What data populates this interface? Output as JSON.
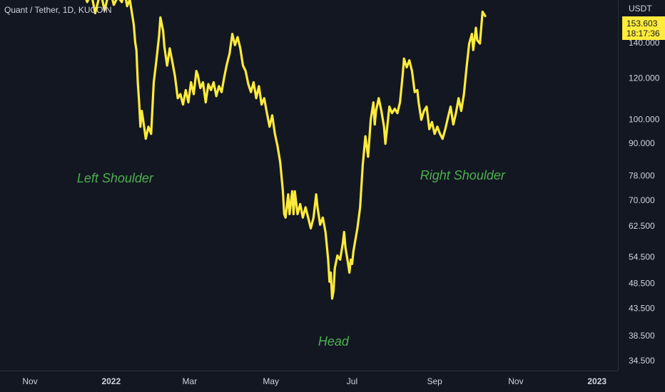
{
  "symbol_info": "Quant / Tether, 1D, KUCOIN",
  "currency": "USDT",
  "price_label": {
    "price": "153.603",
    "countdown": "18:17:36"
  },
  "colors": {
    "background": "#131722",
    "line": "#ffeb3b",
    "annotation": "#4caf50",
    "axis_text": "#d1d4dc"
  },
  "chart_data": {
    "type": "line",
    "scale": "log",
    "title": "Quant / Tether, 1D, KUCOIN",
    "y_unit": "USDT",
    "ylim": [
      32.5,
      170
    ],
    "grid": false,
    "y_ticks": [
      "140.000",
      "120.000",
      "100.000",
      "90.000",
      "78.000",
      "70.000",
      "62.500",
      "54.500",
      "48.500",
      "43.500",
      "38.500",
      "34.500"
    ],
    "x_ticks": [
      {
        "label": "Nov",
        "bold": false,
        "date": "2021-11-01"
      },
      {
        "label": "2022",
        "bold": true,
        "date": "2022-01-01"
      },
      {
        "label": "Mar",
        "bold": false,
        "date": "2022-03-01"
      },
      {
        "label": "May",
        "bold": false,
        "date": "2022-05-01"
      },
      {
        "label": "Jul",
        "bold": false,
        "date": "2022-07-01"
      },
      {
        "label": "Sep",
        "bold": false,
        "date": "2022-09-01"
      },
      {
        "label": "Nov",
        "bold": false,
        "date": "2022-11-01"
      },
      {
        "label": "2023",
        "bold": true,
        "date": "2023-01-01"
      }
    ],
    "annotations": [
      {
        "text": "Left Shoulder",
        "date": "2022-01-04",
        "value": 77
      },
      {
        "text": "Head",
        "date": "2022-06-17",
        "value": 37.5
      },
      {
        "text": "Right Shoulder",
        "date": "2022-09-22",
        "value": 78
      }
    ],
    "series": [
      {
        "values": [
          [
            "2021-12-10",
            180
          ],
          [
            "2021-12-14",
            168
          ],
          [
            "2021-12-17",
            175
          ],
          [
            "2021-12-20",
            160
          ],
          [
            "2021-12-24",
            176
          ],
          [
            "2021-12-27",
            162
          ],
          [
            "2021-12-31",
            178
          ],
          [
            "2022-01-03",
            166
          ],
          [
            "2022-01-06",
            172
          ],
          [
            "2022-01-09",
            168
          ],
          [
            "2022-01-11",
            176
          ],
          [
            "2022-01-13",
            165
          ],
          [
            "2022-01-15",
            170
          ],
          [
            "2022-01-18",
            152
          ],
          [
            "2022-01-19",
            141
          ],
          [
            "2022-01-20",
            136
          ],
          [
            "2022-01-21",
            118
          ],
          [
            "2022-01-22",
            108
          ],
          [
            "2022-01-23",
            97
          ],
          [
            "2022-01-24",
            104
          ],
          [
            "2022-01-25",
            100
          ],
          [
            "2022-01-27",
            92
          ],
          [
            "2022-01-29",
            97
          ],
          [
            "2022-01-31",
            94
          ],
          [
            "2022-02-02",
            118
          ],
          [
            "2022-02-04",
            130
          ],
          [
            "2022-02-06",
            145
          ],
          [
            "2022-02-07",
            157
          ],
          [
            "2022-02-09",
            148
          ],
          [
            "2022-02-10",
            138
          ],
          [
            "2022-02-12",
            127
          ],
          [
            "2022-02-14",
            137
          ],
          [
            "2022-02-16",
            129
          ],
          [
            "2022-02-18",
            121
          ],
          [
            "2022-02-20",
            110
          ],
          [
            "2022-02-22",
            112
          ],
          [
            "2022-02-24",
            107
          ],
          [
            "2022-02-26",
            114
          ],
          [
            "2022-02-28",
            108
          ],
          [
            "2022-03-02",
            118
          ],
          [
            "2022-03-04",
            112
          ],
          [
            "2022-03-06",
            124
          ],
          [
            "2022-03-07",
            122
          ],
          [
            "2022-03-09",
            115
          ],
          [
            "2022-03-11",
            118
          ],
          [
            "2022-03-13",
            108
          ],
          [
            "2022-03-15",
            117
          ],
          [
            "2022-03-17",
            114
          ],
          [
            "2022-03-19",
            118
          ],
          [
            "2022-03-21",
            111
          ],
          [
            "2022-03-23",
            116
          ],
          [
            "2022-03-25",
            113
          ],
          [
            "2022-03-27",
            121
          ],
          [
            "2022-03-29",
            128
          ],
          [
            "2022-03-31",
            134
          ],
          [
            "2022-04-02",
            146
          ],
          [
            "2022-04-04",
            139
          ],
          [
            "2022-04-06",
            144
          ],
          [
            "2022-04-08",
            137
          ],
          [
            "2022-04-10",
            127
          ],
          [
            "2022-04-12",
            124
          ],
          [
            "2022-04-14",
            117
          ],
          [
            "2022-04-16",
            113
          ],
          [
            "2022-04-18",
            118
          ],
          [
            "2022-04-20",
            110
          ],
          [
            "2022-04-22",
            116
          ],
          [
            "2022-04-24",
            107
          ],
          [
            "2022-04-26",
            110
          ],
          [
            "2022-04-28",
            103
          ],
          [
            "2022-04-30",
            97
          ],
          [
            "2022-05-02",
            102
          ],
          [
            "2022-05-04",
            94
          ],
          [
            "2022-05-06",
            89
          ],
          [
            "2022-05-08",
            83
          ],
          [
            "2022-05-10",
            73
          ],
          [
            "2022-05-11",
            66
          ],
          [
            "2022-05-12",
            65
          ],
          [
            "2022-05-14",
            72
          ],
          [
            "2022-05-15",
            66
          ],
          [
            "2022-05-17",
            73
          ],
          [
            "2022-05-18",
            66
          ],
          [
            "2022-05-19",
            73
          ],
          [
            "2022-05-21",
            66
          ],
          [
            "2022-05-23",
            69
          ],
          [
            "2022-05-25",
            65
          ],
          [
            "2022-05-27",
            68
          ],
          [
            "2022-05-29",
            65
          ],
          [
            "2022-05-31",
            62
          ],
          [
            "2022-06-02",
            65
          ],
          [
            "2022-06-04",
            72
          ],
          [
            "2022-06-05",
            68
          ],
          [
            "2022-06-07",
            63
          ],
          [
            "2022-06-09",
            65
          ],
          [
            "2022-06-11",
            61
          ],
          [
            "2022-06-13",
            54
          ],
          [
            "2022-06-14",
            49
          ],
          [
            "2022-06-15",
            51
          ],
          [
            "2022-06-16",
            45.5
          ],
          [
            "2022-06-17",
            47
          ],
          [
            "2022-06-18",
            52
          ],
          [
            "2022-06-20",
            55
          ],
          [
            "2022-06-22",
            54
          ],
          [
            "2022-06-24",
            58
          ],
          [
            "2022-06-25",
            61
          ],
          [
            "2022-06-26",
            57
          ],
          [
            "2022-06-27",
            55
          ],
          [
            "2022-06-28",
            53
          ],
          [
            "2022-06-29",
            51
          ],
          [
            "2022-06-30",
            54
          ],
          [
            "2022-07-01",
            53
          ],
          [
            "2022-07-02",
            56
          ],
          [
            "2022-07-03",
            58
          ],
          [
            "2022-07-05",
            62
          ],
          [
            "2022-07-07",
            68
          ],
          [
            "2022-07-09",
            82
          ],
          [
            "2022-07-11",
            93
          ],
          [
            "2022-07-13",
            85
          ],
          [
            "2022-07-15",
            100
          ],
          [
            "2022-07-17",
            108
          ],
          [
            "2022-07-18",
            98
          ],
          [
            "2022-07-19",
            104
          ],
          [
            "2022-07-21",
            110
          ],
          [
            "2022-07-23",
            104
          ],
          [
            "2022-07-25",
            97
          ],
          [
            "2022-07-26",
            90
          ],
          [
            "2022-07-27",
            95
          ],
          [
            "2022-07-29",
            106
          ],
          [
            "2022-07-31",
            103
          ],
          [
            "2022-08-02",
            105
          ],
          [
            "2022-08-04",
            103
          ],
          [
            "2022-08-06",
            108
          ],
          [
            "2022-08-08",
            122
          ],
          [
            "2022-08-09",
            131
          ],
          [
            "2022-08-11",
            126
          ],
          [
            "2022-08-13",
            130
          ],
          [
            "2022-08-15",
            124
          ],
          [
            "2022-08-17",
            113
          ],
          [
            "2022-08-19",
            114
          ],
          [
            "2022-08-20",
            108
          ],
          [
            "2022-08-22",
            100
          ],
          [
            "2022-08-24",
            104
          ],
          [
            "2022-08-26",
            106
          ],
          [
            "2022-08-28",
            96
          ],
          [
            "2022-08-30",
            99
          ],
          [
            "2022-09-01",
            94
          ],
          [
            "2022-09-03",
            97
          ],
          [
            "2022-09-05",
            94
          ],
          [
            "2022-09-07",
            92
          ],
          [
            "2022-09-09",
            96
          ],
          [
            "2022-09-11",
            101
          ],
          [
            "2022-09-13",
            106
          ],
          [
            "2022-09-15",
            98
          ],
          [
            "2022-09-17",
            103
          ],
          [
            "2022-09-19",
            110
          ],
          [
            "2022-09-21",
            104
          ],
          [
            "2022-09-23",
            112
          ],
          [
            "2022-09-25",
            126
          ],
          [
            "2022-09-27",
            140
          ],
          [
            "2022-09-29",
            146
          ],
          [
            "2022-09-30",
            136
          ],
          [
            "2022-10-02",
            150
          ],
          [
            "2022-10-03",
            142
          ],
          [
            "2022-10-05",
            140
          ],
          [
            "2022-10-07",
            161
          ],
          [
            "2022-10-09",
            158
          ]
        ]
      }
    ]
  }
}
